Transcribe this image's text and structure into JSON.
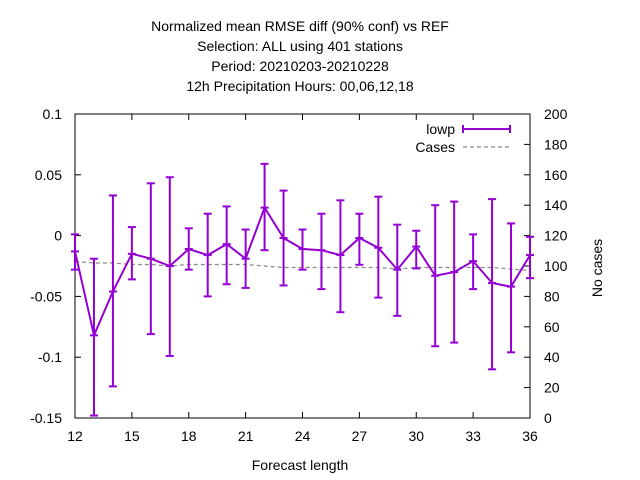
{
  "chart_data": {
    "type": "line",
    "title_lines": [
      "Normalized mean RMSE diff (90% conf) vs REF",
      "Selection: ALL using   401 stations",
      "Period: 20210203-20210228",
      "12h Precipitation   Hours:  00,06,12,18"
    ],
    "xlabel": "Forecast length",
    "ylabel": "",
    "y2label": "No cases",
    "xlim": [
      12,
      36
    ],
    "ylim": [
      -0.15,
      0.1
    ],
    "y2lim": [
      0,
      200
    ],
    "x_ticks": [
      12,
      15,
      18,
      21,
      24,
      27,
      30,
      33,
      36
    ],
    "y_ticks": [
      -0.15,
      -0.1,
      -0.05,
      0,
      0.05,
      0.1
    ],
    "y2_ticks": [
      0,
      20,
      40,
      60,
      80,
      100,
      120,
      140,
      160,
      180,
      200
    ],
    "legend_position": "top-right",
    "series": [
      {
        "name": "lowp",
        "color": "#9400d3",
        "x": [
          12,
          13,
          14,
          15,
          16,
          17,
          18,
          19,
          20,
          21,
          22,
          23,
          24,
          25,
          26,
          27,
          28,
          29,
          30,
          31,
          32,
          33,
          34,
          35,
          36
        ],
        "y": [
          -0.013,
          -0.082,
          -0.046,
          -0.015,
          -0.019,
          -0.025,
          -0.011,
          -0.016,
          -0.007,
          -0.019,
          0.023,
          -0.002,
          -0.011,
          -0.012,
          -0.016,
          -0.002,
          -0.01,
          -0.028,
          -0.009,
          -0.033,
          -0.03,
          -0.021,
          -0.039,
          -0.042,
          -0.016
        ],
        "err_low": [
          -0.028,
          -0.148,
          -0.124,
          -0.036,
          -0.081,
          -0.099,
          -0.028,
          -0.05,
          -0.04,
          -0.043,
          -0.012,
          -0.041,
          -0.028,
          -0.044,
          -0.063,
          -0.024,
          -0.051,
          -0.066,
          -0.027,
          -0.091,
          -0.088,
          -0.044,
          -0.11,
          -0.096,
          -0.035
        ],
        "err_high": [
          0.001,
          -0.019,
          0.033,
          0.007,
          0.043,
          0.048,
          0.006,
          0.018,
          0.024,
          0.005,
          0.059,
          0.037,
          0.005,
          0.018,
          0.029,
          0.018,
          0.032,
          0.009,
          0.004,
          0.025,
          0.028,
          0.001,
          0.03,
          0.01,
          -0.001
        ]
      },
      {
        "name": "Cases",
        "color": "#888888",
        "axis": "y2",
        "x": [
          12,
          13,
          14,
          15,
          16,
          17,
          18,
          19,
          20,
          21,
          22,
          23,
          24,
          25,
          26,
          27,
          28,
          29,
          30,
          31,
          32,
          33,
          34,
          35,
          36
        ],
        "y": [
          103,
          102,
          102,
          101,
          101,
          100,
          101,
          101,
          101,
          101,
          100,
          99,
          99,
          99,
          99,
          99,
          99,
          98,
          99,
          99,
          99,
          99,
          99,
          98,
          97
        ]
      }
    ]
  }
}
